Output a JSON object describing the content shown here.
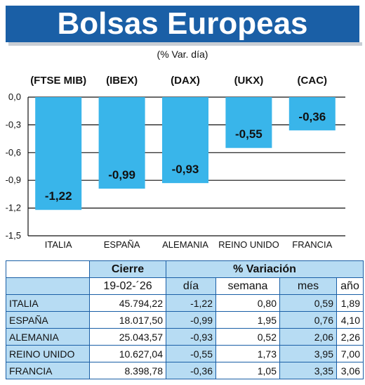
{
  "header": {
    "title": "Bolsas Europeas",
    "subtitle": "(% Var. día)"
  },
  "chart_data": {
    "type": "bar",
    "index_labels": [
      "(FTSE MIB)",
      "(IBEX)",
      "(DAX)",
      "(UKX)",
      "(CAC)"
    ],
    "categories": [
      "ITALIA",
      "ESPAÑA",
      "ALEMANIA",
      "REINO UNIDO",
      "FRANCIA"
    ],
    "values": [
      -1.22,
      -0.99,
      -0.93,
      -0.55,
      -0.36
    ],
    "data_labels": [
      "-1,22",
      "-0,99",
      "-0,93",
      "-0,55",
      "-0,36"
    ],
    "yticks": [
      "0,0",
      "-0,3",
      "-0,6",
      "-0,9",
      "-1,2",
      "-1,5"
    ],
    "ytick_values": [
      0,
      -0.3,
      -0.6,
      -0.9,
      -1.2,
      -1.5
    ],
    "ylim": [
      -1.5,
      0
    ],
    "grid": true,
    "bar_color": "#39b5ea"
  },
  "table": {
    "group_headers": {
      "close": "Cierre",
      "variation": "% Variación"
    },
    "sub_headers": {
      "date": "19-02-´26",
      "day": "día",
      "week": "semana",
      "month": "mes",
      "year": "año"
    },
    "rows": [
      {
        "country": "ITALIA",
        "close": "45.794,22",
        "day": "-1,22",
        "week": "0,80",
        "month": "0,59",
        "year": "1,89"
      },
      {
        "country": "ESPAÑA",
        "close": "18.017,50",
        "day": "-0,99",
        "week": "1,95",
        "month": "0,76",
        "year": "4,10"
      },
      {
        "country": "ALEMANIA",
        "close": "25.043,57",
        "day": "-0,93",
        "week": "0,52",
        "month": "2,06",
        "year": "2,26"
      },
      {
        "country": "REINO UNIDO",
        "close": "10.627,04",
        "day": "-0,55",
        "week": "1,73",
        "month": "3,95",
        "year": "7,00"
      },
      {
        "country": "FRANCIA",
        "close": "8.398,78",
        "day": "-0,36",
        "week": "1,05",
        "month": "3,35",
        "year": "3,06"
      }
    ],
    "colors": {
      "header_fill": "#b7dcf3",
      "border": "#1a5fa6"
    }
  }
}
